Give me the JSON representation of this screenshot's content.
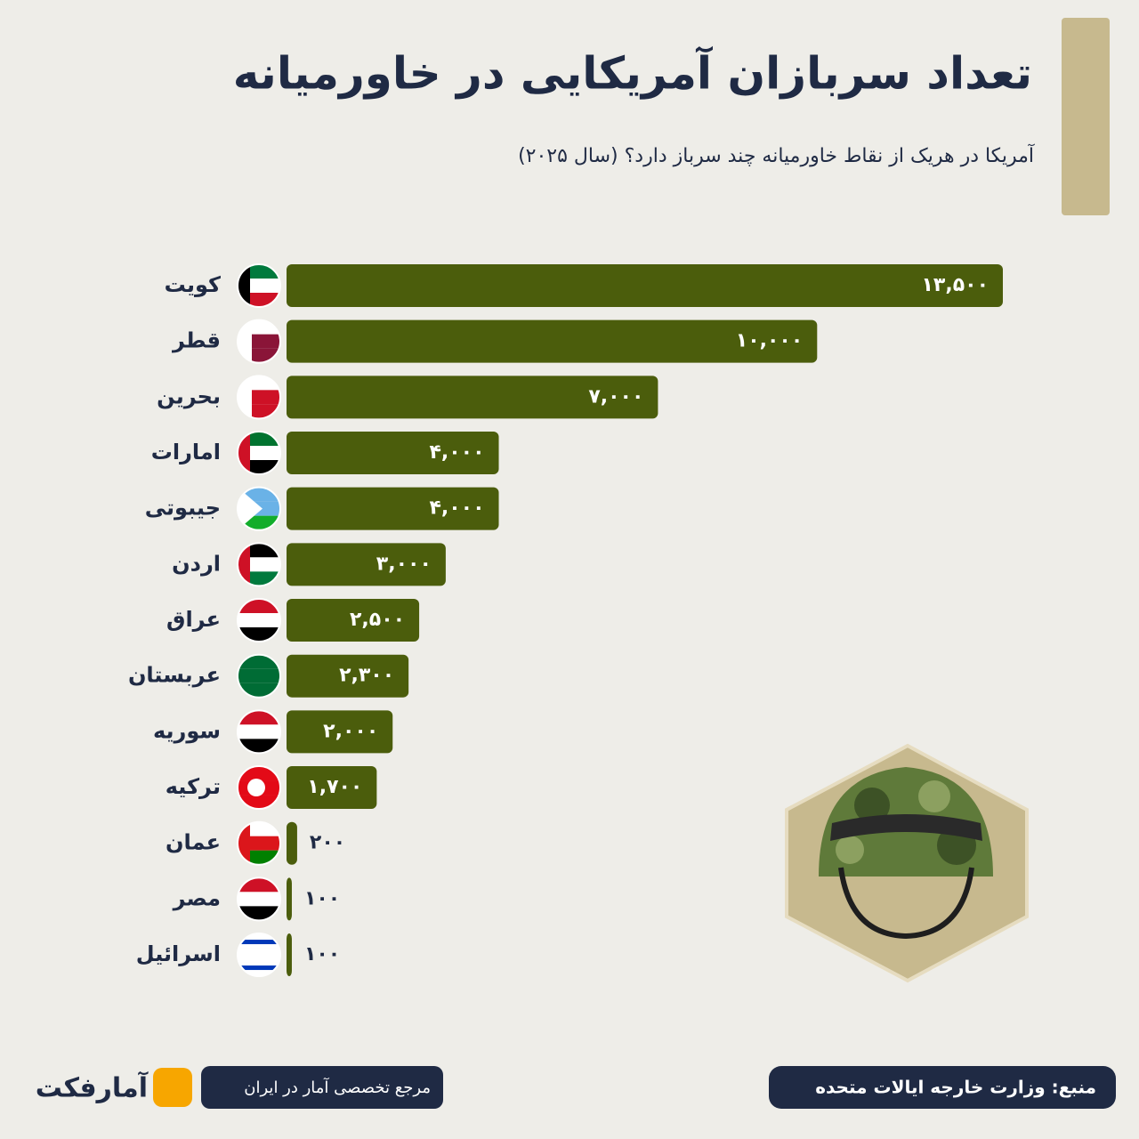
{
  "chart_data": {
    "type": "bar",
    "orientation": "horizontal",
    "title": "تعداد سربازان آمریکایی در خاورمیانه",
    "subtitle": "آمریکا در هریک از نقاط خاورمیانه چند سرباز دارد؟ (سال ۲۰۲۵)",
    "categories": [
      "کویت",
      "قطر",
      "بحرین",
      "امارات",
      "جیبوتی",
      "اردن",
      "عراق",
      "عربستان",
      "سوریه",
      "ترکیه",
      "عمان",
      "مصر",
      "اسرائیل"
    ],
    "values": [
      13500,
      10000,
      7000,
      4000,
      4000,
      3000,
      2500,
      2300,
      2000,
      1700,
      200,
      100,
      100
    ],
    "value_labels": [
      "۱۳,۵۰۰",
      "۱۰,۰۰۰",
      "۷,۰۰۰",
      "۴,۰۰۰",
      "۴,۰۰۰",
      "۳,۰۰۰",
      "۲,۵۰۰",
      "۲,۳۰۰",
      "۲,۰۰۰",
      "۱,۷۰۰",
      "۲۰۰",
      "۱۰۰",
      "۱۰۰"
    ],
    "color": "#4b5d0c",
    "source": "منبع: وزارت خارجه ایالات متحده"
  },
  "footer": {
    "logo": "آمارفکت",
    "tagline": "مرجع تخصصی آمار در ایران"
  }
}
